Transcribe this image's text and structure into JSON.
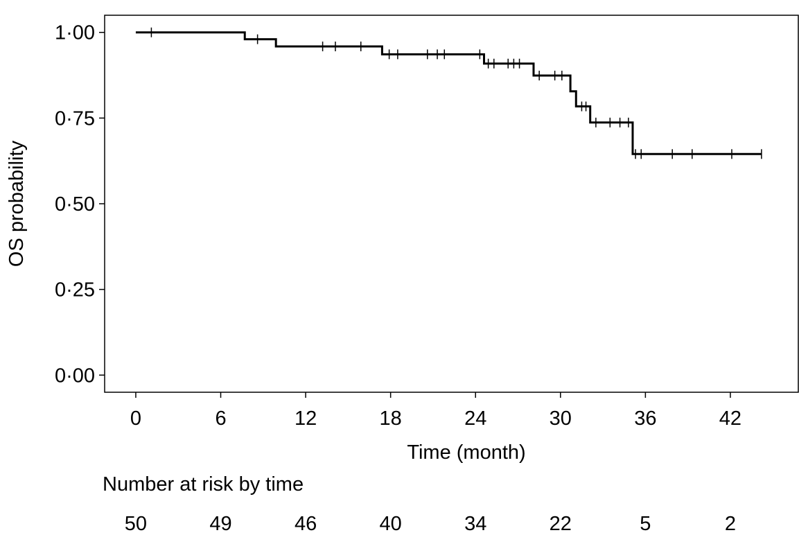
{
  "chart_data": {
    "type": "line",
    "xlabel": "Time (month)",
    "ylabel": "OS probability",
    "xlim": [
      -2.2,
      46.8
    ],
    "ylim": [
      -0.05,
      1.05
    ],
    "x_ticks": [
      0,
      6,
      12,
      18,
      24,
      30,
      36,
      42
    ],
    "y_ticks": [
      0.0,
      0.25,
      0.5,
      0.75,
      1.0
    ],
    "y_tick_labels": [
      "0·00",
      "0·25",
      "0·50",
      "0·75",
      "1·00"
    ],
    "x_tick_labels": [
      "0",
      "6",
      "12",
      "18",
      "24",
      "30",
      "36",
      "42"
    ],
    "grid": false,
    "series": [
      {
        "steps": [
          {
            "x": 0,
            "y": 1.0
          },
          {
            "x": 7.7,
            "y": 0.98
          },
          {
            "x": 9.9,
            "y": 0.959
          },
          {
            "x": 17.4,
            "y": 0.936
          },
          {
            "x": 24.6,
            "y": 0.909
          },
          {
            "x": 28.1,
            "y": 0.874
          },
          {
            "x": 30.7,
            "y": 0.828
          },
          {
            "x": 31.1,
            "y": 0.784
          },
          {
            "x": 32.1,
            "y": 0.737
          },
          {
            "x": 35.1,
            "y": 0.645
          }
        ],
        "end_x": 44.2,
        "censored": [
          {
            "x": 1.1,
            "y": 1.0
          },
          {
            "x": 8.6,
            "y": 0.98
          },
          {
            "x": 13.2,
            "y": 0.959
          },
          {
            "x": 14.1,
            "y": 0.959
          },
          {
            "x": 15.9,
            "y": 0.959
          },
          {
            "x": 17.9,
            "y": 0.936
          },
          {
            "x": 18.5,
            "y": 0.936
          },
          {
            "x": 20.6,
            "y": 0.936
          },
          {
            "x": 21.3,
            "y": 0.936
          },
          {
            "x": 21.8,
            "y": 0.936
          },
          {
            "x": 24.3,
            "y": 0.936
          },
          {
            "x": 24.9,
            "y": 0.909
          },
          {
            "x": 25.3,
            "y": 0.909
          },
          {
            "x": 26.3,
            "y": 0.909
          },
          {
            "x": 26.7,
            "y": 0.909
          },
          {
            "x": 27.1,
            "y": 0.909
          },
          {
            "x": 28.5,
            "y": 0.874
          },
          {
            "x": 29.6,
            "y": 0.874
          },
          {
            "x": 30.1,
            "y": 0.874
          },
          {
            "x": 31.5,
            "y": 0.784
          },
          {
            "x": 31.8,
            "y": 0.784
          },
          {
            "x": 32.5,
            "y": 0.737
          },
          {
            "x": 33.5,
            "y": 0.737
          },
          {
            "x": 34.2,
            "y": 0.737
          },
          {
            "x": 34.8,
            "y": 0.737
          },
          {
            "x": 35.3,
            "y": 0.645
          },
          {
            "x": 35.7,
            "y": 0.645
          },
          {
            "x": 37.9,
            "y": 0.645
          },
          {
            "x": 39.3,
            "y": 0.645
          },
          {
            "x": 42.1,
            "y": 0.645
          },
          {
            "x": 44.2,
            "y": 0.645
          }
        ]
      }
    ],
    "risk_table": {
      "title": "Number at risk by time",
      "times": [
        0,
        6,
        12,
        18,
        24,
        30,
        36,
        42
      ],
      "counts": [
        "50",
        "49",
        "46",
        "40",
        "34",
        "22",
        "5",
        "2"
      ]
    },
    "colors": {
      "line": "#000000",
      "axis": "#000000",
      "background": "#ffffff"
    }
  }
}
